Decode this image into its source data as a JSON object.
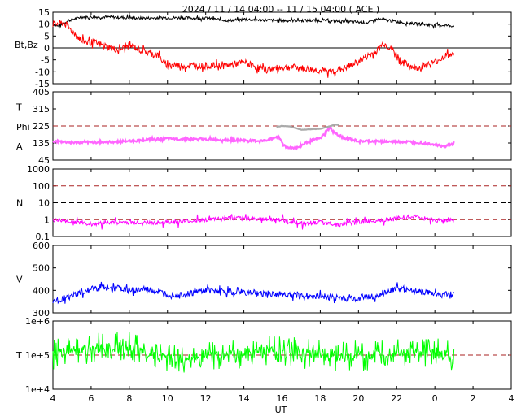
{
  "chart_data": {
    "type": "line",
    "title": "2024 / 11 / 14   04:00 -- 11 / 15   04:00 ( ACE )",
    "xlabel": "UT",
    "x_ticks": [
      "4",
      "6",
      "8",
      "10",
      "12",
      "14",
      "16",
      "18",
      "20",
      "22",
      "0",
      "2",
      "4"
    ],
    "x_range_hours": [
      0,
      24
    ],
    "panels": [
      {
        "id": "mag",
        "ylabel_lines": [
          "Bt,Bz"
        ],
        "scale": "linear",
        "ylim": [
          -15,
          15
        ],
        "yticks": [
          "15",
          "10",
          "5",
          "0",
          "-5",
          "-10",
          "-15"
        ],
        "reference_lines": [
          {
            "y": 0,
            "style": "solid",
            "color": "#000000"
          }
        ],
        "series": [
          {
            "name": "Bt",
            "color": "#000000",
            "knots": [
              [
                0,
                10
              ],
              [
                0.3,
                9
              ],
              [
                0.8,
                11.5
              ],
              [
                1.5,
                13
              ],
              [
                3,
                13
              ],
              [
                4.5,
                12.5
              ],
              [
                6,
                12.7
              ],
              [
                8,
                12.5
              ],
              [
                9.2,
                11.5
              ],
              [
                10,
                12
              ],
              [
                12,
                11.5
              ],
              [
                14,
                11.5
              ],
              [
                15,
                11.3
              ],
              [
                16.5,
                10.5
              ],
              [
                17,
                12.2
              ],
              [
                18.5,
                10.5
              ],
              [
                19.2,
                10
              ],
              [
                20,
                9.6
              ],
              [
                21,
                9.3
              ]
            ]
          },
          {
            "name": "Bz",
            "color": "#ff0000",
            "knots": [
              [
                0,
                10
              ],
              [
                0.6,
                10.5
              ],
              [
                1,
                7
              ],
              [
                1.5,
                3
              ],
              [
                2.3,
                2
              ],
              [
                3.4,
                -1
              ],
              [
                4,
                1
              ],
              [
                5,
                -2
              ],
              [
                5.5,
                -3
              ],
              [
                5.9,
                -7
              ],
              [
                7,
                -7.5
              ],
              [
                9,
                -7.5
              ],
              [
                10,
                -6
              ],
              [
                11,
                -9
              ],
              [
                12.5,
                -8
              ],
              [
                13.5,
                -9
              ],
              [
                14.5,
                -10
              ],
              [
                15.5,
                -8
              ],
              [
                17,
                -1
              ],
              [
                17.3,
                2
              ],
              [
                17.8,
                -1
              ],
              [
                18.3,
                -6
              ],
              [
                19,
                -8.5
              ],
              [
                20,
                -6
              ],
              [
                20.6,
                -3
              ],
              [
                21,
                -3
              ]
            ]
          }
        ]
      },
      {
        "id": "phi",
        "ylabel_lines": [
          "T",
          "Phi",
          "A"
        ],
        "scale": "linear",
        "ylim": [
          45,
          405
        ],
        "yticks": [
          "405",
          "315",
          "225",
          "135",
          "45"
        ],
        "reference_lines": [
          {
            "y": 225,
            "style": "dashed",
            "color": "#aa2222"
          }
        ],
        "series": [
          {
            "name": "Phi",
            "color": "#ff66ff",
            "knots": [
              [
                0,
                145
              ],
              [
                1,
                137
              ],
              [
                3,
                140
              ],
              [
                6,
                158
              ],
              [
                9,
                152
              ],
              [
                11,
                145
              ],
              [
                11.5,
                160
              ],
              [
                11.8,
                170
              ],
              [
                12.2,
                112
              ],
              [
                12.8,
                110
              ],
              [
                13.5,
                150
              ],
              [
                14,
                158
              ],
              [
                14.5,
                215
              ],
              [
                15,
                168
              ],
              [
                16,
                145
              ],
              [
                18,
                142
              ],
              [
                19,
                140
              ],
              [
                20,
                128
              ],
              [
                20.5,
                115
              ],
              [
                21,
                135
              ]
            ]
          },
          {
            "name": "Theta",
            "color": "#aaaaaa",
            "knots": [
              [
                11.7,
                220
              ],
              [
                12,
                225
              ],
              [
                12.4,
                223
              ],
              [
                13,
                205
              ],
              [
                14,
                210
              ],
              [
                14.8,
                232
              ],
              [
                15,
                230
              ]
            ]
          }
        ]
      },
      {
        "id": "density",
        "ylabel_lines": [
          "N"
        ],
        "scale": "log",
        "ylim": [
          0.1,
          1000
        ],
        "yticks": [
          "1000",
          "100",
          "10",
          "1",
          "0.1"
        ],
        "reference_lines": [
          {
            "y": 100,
            "style": "dashed",
            "color": "#aa2222"
          },
          {
            "y": 10,
            "style": "dashed",
            "color": "#000000"
          },
          {
            "y": 1,
            "style": "dashed",
            "color": "#aa2222"
          }
        ],
        "series": [
          {
            "name": "N",
            "color": "#ff00ff",
            "knots": [
              [
                0,
                1
              ],
              [
                1,
                0.75
              ],
              [
                2,
                0.55
              ],
              [
                3,
                0.7
              ],
              [
                5,
                0.65
              ],
              [
                7,
                0.75
              ],
              [
                9,
                1.2
              ],
              [
                11,
                1.1
              ],
              [
                12,
                0.9
              ],
              [
                13,
                0.6
              ],
              [
                14,
                0.7
              ],
              [
                15,
                0.5
              ],
              [
                16,
                0.7
              ],
              [
                17,
                0.9
              ],
              [
                18,
                1.2
              ],
              [
                19,
                1.5
              ],
              [
                20,
                0.9
              ],
              [
                21,
                0.9
              ]
            ]
          }
        ]
      },
      {
        "id": "speed",
        "ylabel_lines": [
          "V"
        ],
        "scale": "linear",
        "ylim": [
          300,
          600
        ],
        "yticks": [
          "600",
          "500",
          "400",
          "300"
        ],
        "reference_lines": [],
        "series": [
          {
            "name": "V",
            "color": "#0000ff",
            "knots": [
              [
                0,
                350
              ],
              [
                1,
                375
              ],
              [
                2,
                405
              ],
              [
                3,
                415
              ],
              [
                4,
                400
              ],
              [
                5,
                402
              ],
              [
                6,
                382
              ],
              [
                7,
                382
              ],
              [
                8,
                400
              ],
              [
                9,
                396
              ],
              [
                10,
                390
              ],
              [
                11,
                385
              ],
              [
                12,
                382
              ],
              [
                13,
                375
              ],
              [
                14,
                375
              ],
              [
                15,
                365
              ],
              [
                16,
                365
              ],
              [
                17,
                375
              ],
              [
                18,
                410
              ],
              [
                19,
                398
              ],
              [
                20,
                382
              ],
              [
                21,
                380
              ]
            ]
          }
        ]
      },
      {
        "id": "temperature",
        "ylabel_lines": [
          "T"
        ],
        "scale": "log",
        "ylim": [
          10000,
          1000000
        ],
        "yticks": [
          "1e+6",
          "1e+5",
          "1e+4"
        ],
        "reference_lines": [
          {
            "y": 100000,
            "style": "dashed",
            "color": "#aa2222"
          }
        ],
        "series": [
          {
            "name": "T",
            "color": "#00ff00",
            "knots": [
              [
                0,
                100000
              ],
              [
                2,
                160000
              ],
              [
                4,
                180000
              ],
              [
                5,
                110000
              ],
              [
                6,
                70000
              ],
              [
                7,
                80000
              ],
              [
                8,
                110000
              ],
              [
                9,
                100000
              ],
              [
                10,
                95000
              ],
              [
                11,
                140000
              ],
              [
                12,
                130000
              ],
              [
                13,
                110000
              ],
              [
                14,
                120000
              ],
              [
                15,
                90000
              ],
              [
                16,
                100000
              ],
              [
                17,
                90000
              ],
              [
                18,
                130000
              ],
              [
                19,
                110000
              ],
              [
                20,
                120000
              ],
              [
                21,
                80000
              ]
            ]
          }
        ]
      }
    ]
  }
}
